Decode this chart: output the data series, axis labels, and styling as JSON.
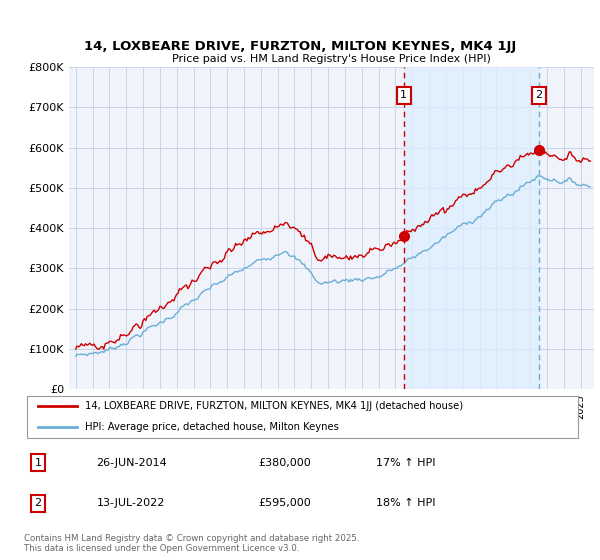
{
  "title": "14, LOXBEARE DRIVE, FURZTON, MILTON KEYNES, MK4 1JJ",
  "subtitle": "Price paid vs. HM Land Registry's House Price Index (HPI)",
  "legend_line1": "14, LOXBEARE DRIVE, FURZTON, MILTON KEYNES, MK4 1JJ (detached house)",
  "legend_line2": "HPI: Average price, detached house, Milton Keynes",
  "annotation1_date": "26-JUN-2014",
  "annotation1_price": "£380,000",
  "annotation1_hpi": "17% ↑ HPI",
  "annotation2_date": "13-JUL-2022",
  "annotation2_price": "£595,000",
  "annotation2_hpi": "18% ↑ HPI",
  "footnote": "Contains HM Land Registry data © Crown copyright and database right 2025.\nThis data is licensed under the Open Government Licence v3.0.",
  "hpi_color": "#6aaed6",
  "price_color": "#cc0000",
  "vline1_color": "#cc0000",
  "vline2_color": "#6aaed6",
  "shade_color": "#ddeeff",
  "bg_color": "#f0f4fa",
  "grid_color": "#c8d4e8",
  "ylim": [
    0,
    800000
  ],
  "yticks": [
    0,
    100000,
    200000,
    300000,
    400000,
    500000,
    600000,
    700000,
    800000
  ],
  "ytick_labels": [
    "£0",
    "£100K",
    "£200K",
    "£300K",
    "£400K",
    "£500K",
    "£600K",
    "£700K",
    "£800K"
  ],
  "sale1_x": 2014.49,
  "sale1_y": 380000,
  "sale2_x": 2022.54,
  "sale2_y": 595000,
  "xlim_left": 1994.6,
  "xlim_right": 2025.8
}
